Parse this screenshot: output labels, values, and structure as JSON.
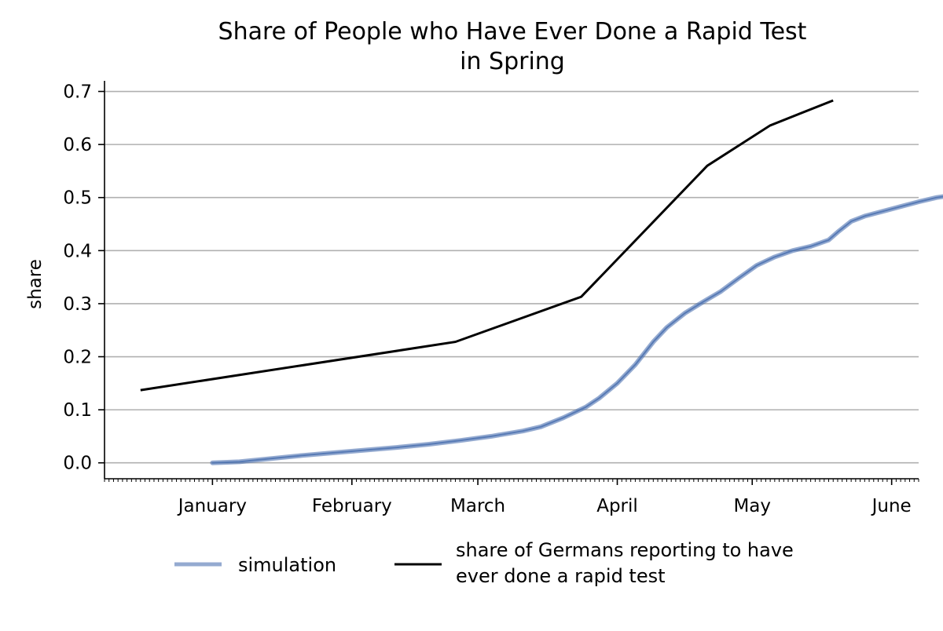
{
  "chart_data": {
    "type": "line",
    "title_lines": [
      "Share of People who Have Ever Done a Rapid Test",
      "in Spring"
    ],
    "xlabel": "",
    "ylabel": "share",
    "x_axis_type": "date",
    "xlim": [
      "2020-12-08",
      "2021-06-07"
    ],
    "ylim": [
      -0.03,
      0.72
    ],
    "x_ticks": [
      {
        "date": "2021-01-01",
        "label": "January"
      },
      {
        "date": "2021-02-01",
        "label": "February"
      },
      {
        "date": "2021-03-01",
        "label": "March"
      },
      {
        "date": "2021-04-01",
        "label": "April"
      },
      {
        "date": "2021-05-01",
        "label": "May"
      },
      {
        "date": "2021-06-01",
        "label": "June"
      }
    ],
    "y_ticks": [
      {
        "value": 0.0,
        "label": "0.0"
      },
      {
        "value": 0.1,
        "label": "0.1"
      },
      {
        "value": 0.2,
        "label": "0.2"
      },
      {
        "value": 0.3,
        "label": "0.3"
      },
      {
        "value": 0.4,
        "label": "0.4"
      },
      {
        "value": 0.5,
        "label": "0.5"
      },
      {
        "value": 0.6,
        "label": "0.6"
      },
      {
        "value": 0.7,
        "label": "0.7"
      }
    ],
    "grid": "horizontal",
    "legend_placement": "bottom-center",
    "series": [
      {
        "name": "simulation",
        "color": "#4c72b0",
        "points": [
          {
            "x": "2021-01-01",
            "y": 0.0
          },
          {
            "x": "2021-01-07",
            "y": 0.002
          },
          {
            "x": "2021-01-14",
            "y": 0.008
          },
          {
            "x": "2021-01-21",
            "y": 0.014
          },
          {
            "x": "2021-01-28",
            "y": 0.019
          },
          {
            "x": "2021-02-04",
            "y": 0.024
          },
          {
            "x": "2021-02-11",
            "y": 0.029
          },
          {
            "x": "2021-02-18",
            "y": 0.035
          },
          {
            "x": "2021-02-25",
            "y": 0.042
          },
          {
            "x": "2021-03-04",
            "y": 0.05
          },
          {
            "x": "2021-03-11",
            "y": 0.06
          },
          {
            "x": "2021-03-15",
            "y": 0.068
          },
          {
            "x": "2021-03-20",
            "y": 0.085
          },
          {
            "x": "2021-03-25",
            "y": 0.105
          },
          {
            "x": "2021-03-28",
            "y": 0.122
          },
          {
            "x": "2021-04-01",
            "y": 0.15
          },
          {
            "x": "2021-04-05",
            "y": 0.185
          },
          {
            "x": "2021-04-09",
            "y": 0.228
          },
          {
            "x": "2021-04-12",
            "y": 0.255
          },
          {
            "x": "2021-04-16",
            "y": 0.282
          },
          {
            "x": "2021-04-20",
            "y": 0.303
          },
          {
            "x": "2021-04-24",
            "y": 0.323
          },
          {
            "x": "2021-04-28",
            "y": 0.348
          },
          {
            "x": "2021-05-02",
            "y": 0.372
          },
          {
            "x": "2021-05-06",
            "y": 0.388
          },
          {
            "x": "2021-05-10",
            "y": 0.4
          },
          {
            "x": "2021-05-14",
            "y": 0.408
          },
          {
            "x": "2021-05-18",
            "y": 0.42
          },
          {
            "x": "2021-05-20",
            "y": 0.435
          },
          {
            "x": "2021-05-23",
            "y": 0.455
          },
          {
            "x": "2021-05-26",
            "y": 0.465
          },
          {
            "x": "2021-05-30",
            "y": 0.474
          },
          {
            "x": "2021-06-03",
            "y": 0.483
          },
          {
            "x": "2021-06-07",
            "y": 0.492
          },
          {
            "x": "2021-06-11",
            "y": 0.5
          },
          {
            "x": "2021-06-15",
            "y": 0.505
          }
        ]
      },
      {
        "name": "share of Germans reporting to have ever done a rapid test",
        "color": "#000000",
        "points": [
          {
            "x": "2020-12-16",
            "y": 0.137
          },
          {
            "x": "2021-02-24",
            "y": 0.228
          },
          {
            "x": "2021-03-24",
            "y": 0.313
          },
          {
            "x": "2021-04-21",
            "y": 0.56
          },
          {
            "x": "2021-05-05",
            "y": 0.636
          },
          {
            "x": "2021-05-19",
            "y": 0.683
          }
        ]
      }
    ],
    "legend": [
      {
        "label_lines": [
          "simulation"
        ],
        "color": "#4c72b0",
        "alpha": 0.6
      },
      {
        "label_lines": [
          "share of Germans reporting to have",
          "ever done a rapid test"
        ],
        "color": "#000000",
        "alpha": 1
      }
    ]
  }
}
